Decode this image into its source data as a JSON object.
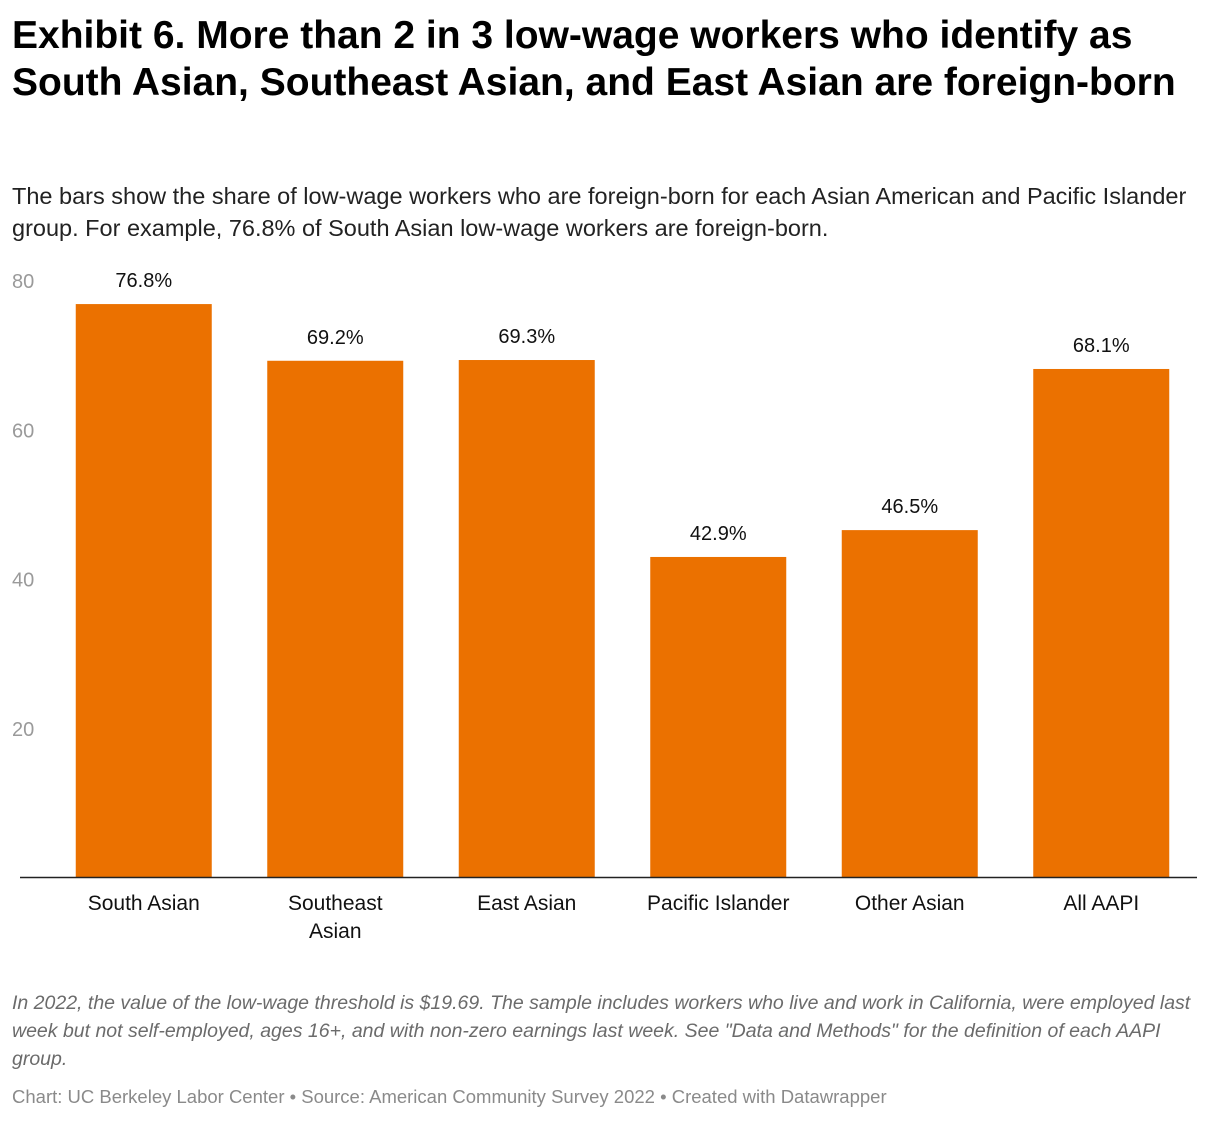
{
  "header": {
    "title": "Exhibit 6. More than 2 in 3 low-wage workers who identify as South Asian, Southeast Asian, and East Asian are foreign-born",
    "subtitle": "The bars show the share of low-wage workers who are foreign-born for each Asian American and Pacific Islander group. For example, 76.8% of South Asian low-wage workers are foreign-born."
  },
  "chart_data": {
    "type": "bar",
    "title": "Exhibit 6. More than 2 in 3 low-wage workers who identify as South Asian, Southeast Asian, and East Asian are foreign-born",
    "xlabel": "",
    "ylabel": "",
    "categories": [
      [
        "South Asian"
      ],
      [
        "Southeast",
        "Asian"
      ],
      [
        "East Asian"
      ],
      [
        "Pacific Islander"
      ],
      [
        "Other Asian"
      ],
      [
        "All AAPI"
      ]
    ],
    "values": [
      76.8,
      69.2,
      69.3,
      42.9,
      46.5,
      68.1
    ],
    "value_labels": [
      "76.8%",
      "69.2%",
      "69.3%",
      "42.9%",
      "46.5%",
      "68.1%"
    ],
    "yticks": [
      20,
      40,
      60,
      80
    ],
    "ylim": [
      0,
      80
    ],
    "grid": false,
    "bar_color": "#eb7100"
  },
  "footer": {
    "notes": "In 2022, the value of the low-wage threshold is $19.69. The sample includes workers who live and work in California, were employed last week but not self-employed, ages 16+, and with non-zero earnings last week. See \"Data and Methods\" for the definition of each AAPI group.",
    "credits": "Chart: UC Berkeley Labor Center • Source: American Community Survey 2022 • Created with Datawrapper"
  }
}
